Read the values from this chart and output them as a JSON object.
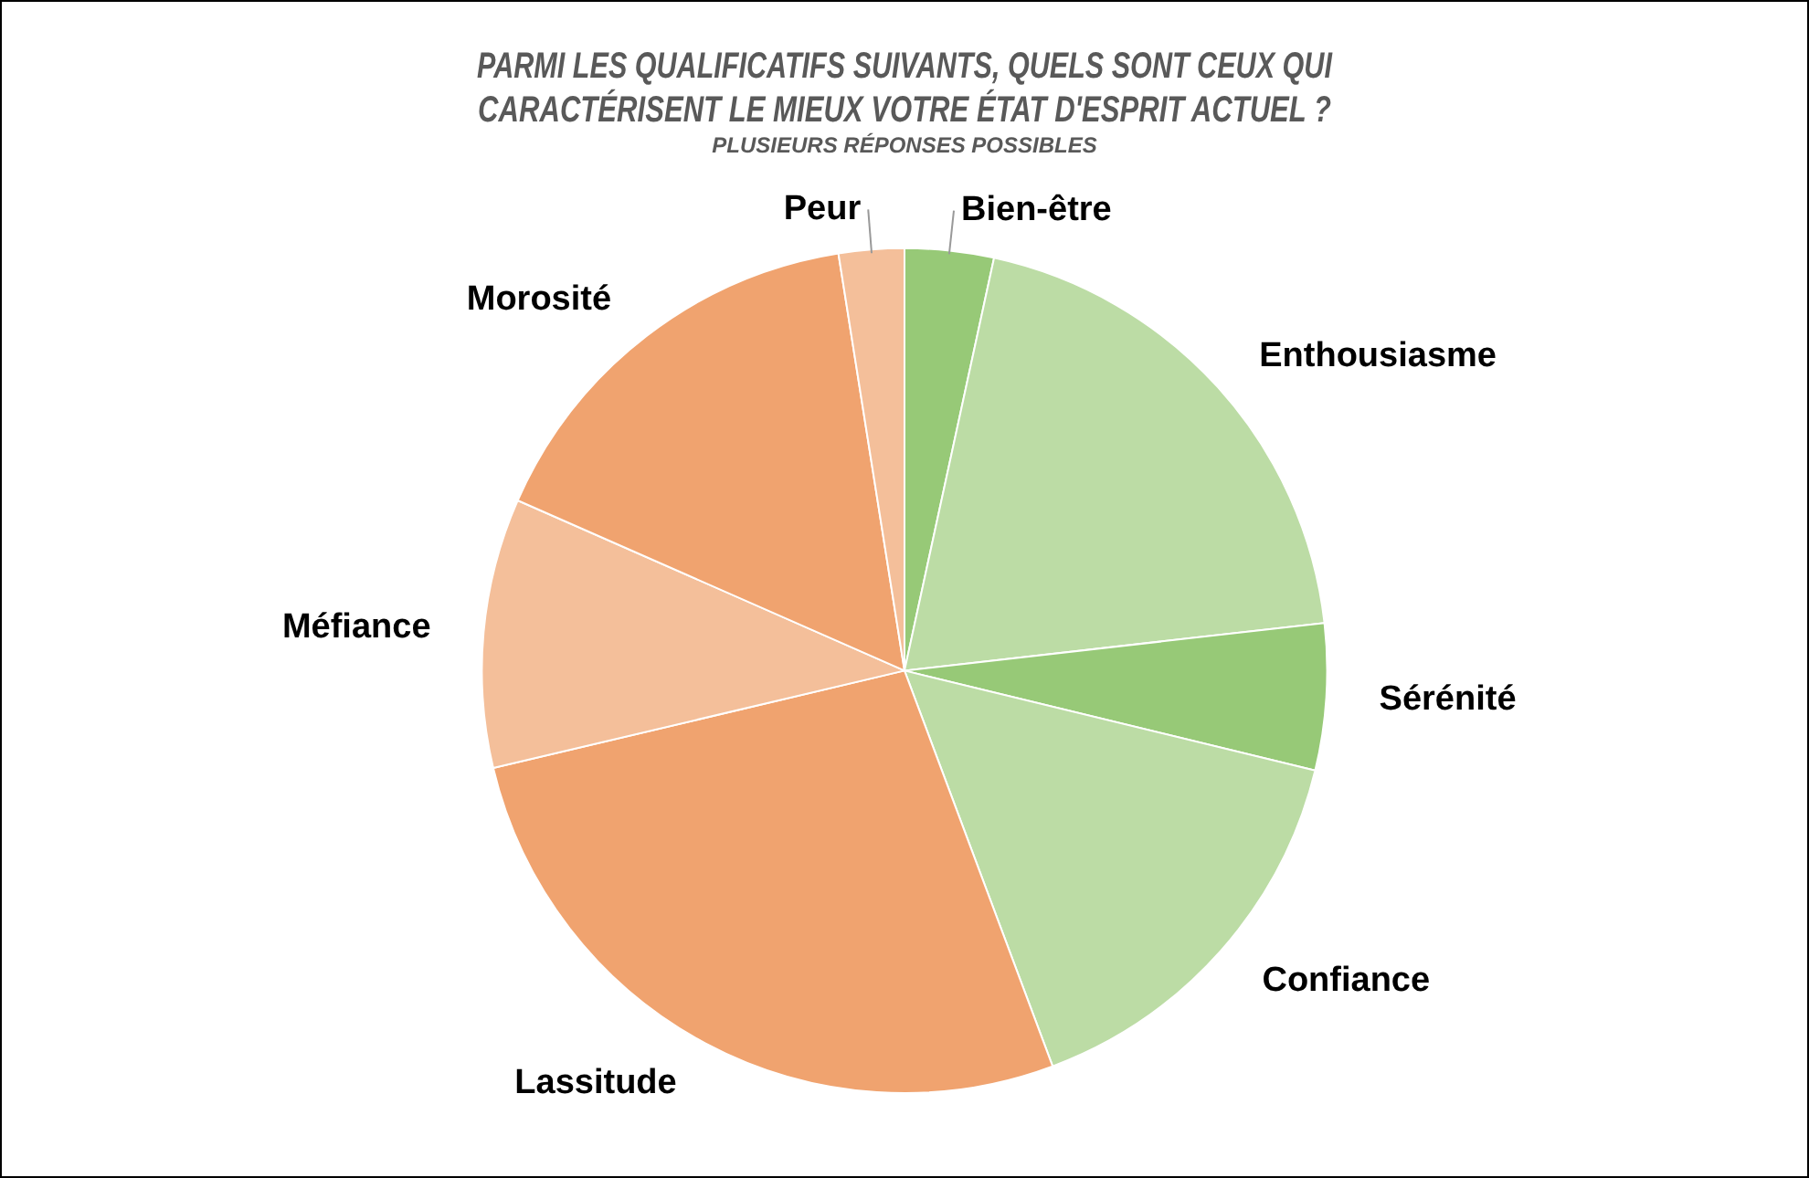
{
  "chart_data": {
    "type": "pie",
    "title": "PARMI LES QUALIFICATIFS SUIVANTS, QUELS SONT CEUX QUI CARACTÉRISENT LE MIEUX VOTRE ÉTAT D'ESPRIT ACTUEL ?",
    "subtitle": "PLUSIEURS RÉPONSES POSSIBLES",
    "categories": [
      "Bien-être",
      "Enthousiasme",
      "Sérénité",
      "Confiance",
      "Lassitude",
      "Méfiance",
      "Morosité",
      "Peur"
    ],
    "values": [
      3.4,
      19.8,
      5.6,
      15.5,
      27.0,
      10.3,
      15.9,
      2.5
    ],
    "colors": [
      "#97c977",
      "#bcdca5",
      "#97c977",
      "#bcdca5",
      "#f0a36f",
      "#f4bf9a",
      "#f0a36f",
      "#f4bf9a"
    ],
    "legend": false
  }
}
